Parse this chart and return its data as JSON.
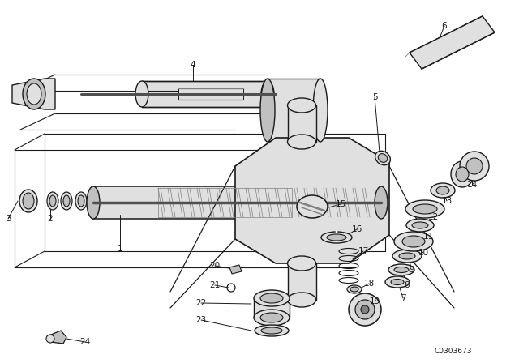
{
  "background_color": "#ffffff",
  "image_code": "C0303673",
  "lc": "#1a1a1a",
  "gray_light": "#e0e0e0",
  "gray_mid": "#c0c0c0",
  "gray_dark": "#808080",
  "gray_darker": "#505050",
  "hatch_gray": "#aaaaaa"
}
